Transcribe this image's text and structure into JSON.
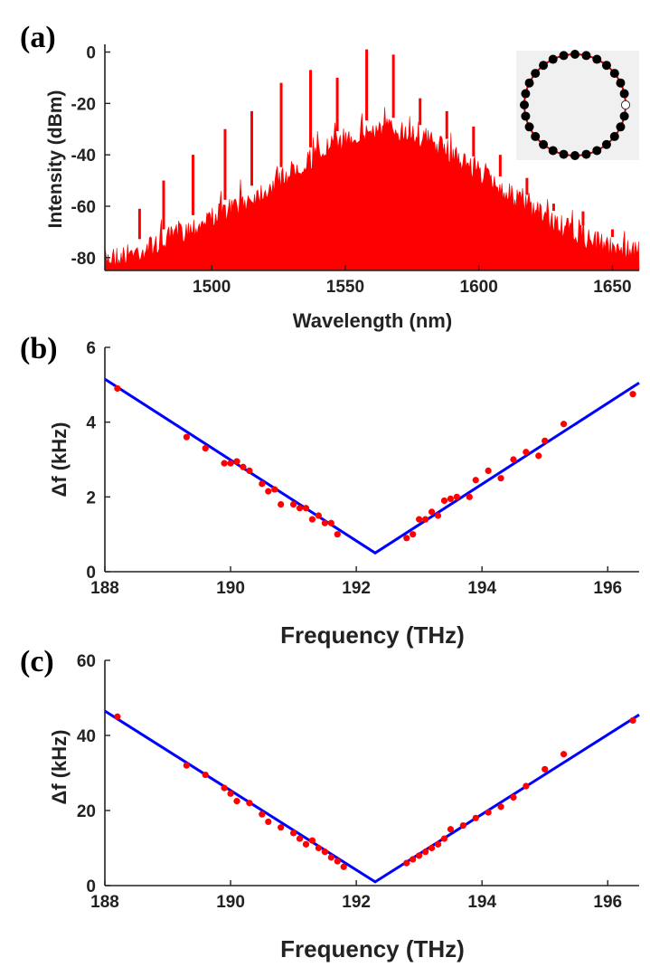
{
  "colors": {
    "spectrum": "#ff0000",
    "fit_line": "#0000ff",
    "points": "#ff0000",
    "axis": "#222222",
    "inset_bg": "#f0f0f0",
    "inset_dot": "#000000",
    "inset_mark": "#cc0000"
  },
  "chart_data": [
    {
      "panel": "(a)",
      "type": "line",
      "title": "",
      "xlabel": "Wavelength (nm)",
      "ylabel": "Intensity (dBm)",
      "xlim": [
        1460,
        1660
      ],
      "ylim": [
        -85,
        3
      ],
      "xticks": [
        1500,
        1550,
        1600,
        1650
      ],
      "yticks": [
        0,
        -20,
        -40,
        -60,
        -80
      ],
      "envelope": {
        "x": [
          1460,
          1470,
          1480,
          1490,
          1500,
          1510,
          1520,
          1530,
          1540,
          1550,
          1560,
          1565,
          1570,
          1580,
          1590,
          1600,
          1610,
          1620,
          1630,
          1640,
          1650,
          1660
        ],
        "y": [
          -76,
          -74,
          -70,
          -65,
          -60,
          -55,
          -49,
          -42,
          -35,
          -29,
          -26,
          -25,
          -26,
          -29,
          -35,
          -42,
          -50,
          -57,
          -63,
          -68,
          -72,
          -73
        ]
      },
      "peaks": {
        "x": [
          1473,
          1482,
          1493,
          1505,
          1515,
          1526,
          1537,
          1547,
          1558,
          1568,
          1578,
          1588,
          1598,
          1608,
          1618,
          1628,
          1639,
          1650
        ],
        "y": [
          -61,
          -50,
          -40,
          -30,
          -23,
          -12,
          -7,
          -10,
          1,
          -1,
          -18,
          -23,
          -29,
          -40,
          -49,
          -59,
          -62,
          -69
        ]
      },
      "inset": {
        "description": "ring",
        "dots": 28,
        "marked_dots": 1
      }
    },
    {
      "panel": "(b)",
      "type": "scatter",
      "title": "",
      "xlabel": "Frequency (THz)",
      "ylabel": "Δf (kHz)",
      "xlim": [
        188,
        196.5
      ],
      "ylim": [
        0,
        6
      ],
      "xticks": [
        188,
        190,
        192,
        194,
        196
      ],
      "yticks": [
        0,
        2,
        4,
        6
      ],
      "fit": {
        "x": [
          188,
          192.3,
          196.5
        ],
        "y": [
          5.15,
          0.5,
          5.05
        ]
      },
      "x": [
        188.2,
        189.3,
        189.6,
        189.9,
        190.0,
        190.1,
        190.2,
        190.3,
        190.5,
        190.6,
        190.7,
        190.8,
        191.0,
        191.1,
        191.2,
        191.3,
        191.4,
        191.5,
        191.6,
        191.7,
        192.8,
        192.9,
        193.0,
        193.1,
        193.2,
        193.3,
        193.4,
        193.5,
        193.6,
        193.8,
        193.9,
        194.1,
        194.3,
        194.5,
        194.7,
        194.9,
        195.0,
        195.3,
        196.4
      ],
      "y": [
        4.9,
        3.6,
        3.3,
        2.9,
        2.9,
        2.95,
        2.8,
        2.7,
        2.35,
        2.15,
        2.2,
        1.8,
        1.8,
        1.7,
        1.7,
        1.4,
        1.5,
        1.3,
        1.3,
        1.0,
        0.9,
        1.0,
        1.4,
        1.4,
        1.6,
        1.5,
        1.9,
        1.95,
        2.0,
        2.0,
        2.45,
        2.7,
        2.5,
        3.0,
        3.2,
        3.1,
        3.5,
        3.95,
        4.75
      ]
    },
    {
      "panel": "(c)",
      "type": "scatter",
      "title": "",
      "xlabel": "Frequency (THz)",
      "ylabel": "Δf (kHz)",
      "xlim": [
        188,
        196.5
      ],
      "ylim": [
        0,
        60
      ],
      "xticks": [
        188,
        190,
        192,
        194,
        196
      ],
      "yticks": [
        0,
        20,
        40,
        60
      ],
      "fit": {
        "x": [
          188,
          192.3,
          196.5
        ],
        "y": [
          46.5,
          1.0,
          45.5
        ]
      },
      "x": [
        188.2,
        189.3,
        189.6,
        189.9,
        190.0,
        190.1,
        190.3,
        190.5,
        190.6,
        190.8,
        191.0,
        191.1,
        191.2,
        191.3,
        191.4,
        191.5,
        191.6,
        191.7,
        191.8,
        192.8,
        192.9,
        193.0,
        193.1,
        193.2,
        193.3,
        193.4,
        193.5,
        193.7,
        193.9,
        194.1,
        194.3,
        194.5,
        194.7,
        195.0,
        195.3,
        196.4
      ],
      "y": [
        45,
        32,
        29.5,
        26,
        24.5,
        22.5,
        22,
        19,
        17,
        15.5,
        14,
        12.5,
        11,
        12,
        10,
        9,
        7.5,
        6.5,
        5,
        6,
        7,
        8,
        9,
        10,
        11,
        12.5,
        15,
        16,
        18,
        19.5,
        21,
        23.5,
        26.5,
        31,
        35,
        44
      ]
    }
  ]
}
